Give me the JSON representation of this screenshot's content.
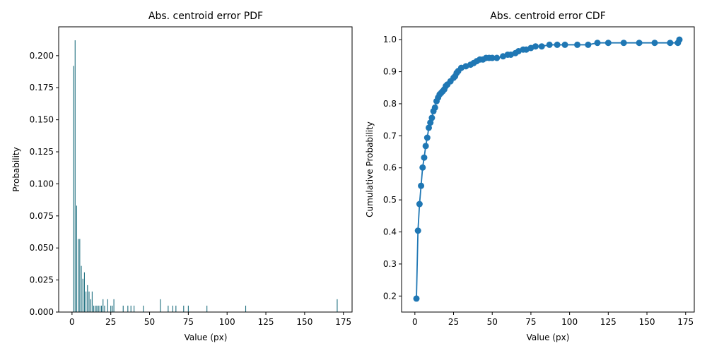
{
  "chart_data": [
    {
      "type": "bar",
      "title": "Abs. centroid error PDF",
      "xlabel": "Value (px)",
      "ylabel": "Probability",
      "xlim": [
        -8.6,
        180.6
      ],
      "ylim": [
        0,
        0.2225
      ],
      "xticks": [
        0,
        25,
        50,
        75,
        100,
        125,
        150,
        175
      ],
      "xtick_labels": [
        "0",
        "25",
        "50",
        "75",
        "100",
        "125",
        "150",
        "175"
      ],
      "yticks": [
        0,
        0.025,
        0.05,
        0.075,
        0.1,
        0.125,
        0.15,
        0.175,
        0.2
      ],
      "ytick_labels": [
        "0.000",
        "0.025",
        "0.050",
        "0.075",
        "0.100",
        "0.125",
        "0.150",
        "0.175",
        "0.200"
      ],
      "grid": false,
      "color": "#1f6f7f",
      "x": [
        1,
        2,
        3,
        4,
        5,
        6,
        7,
        8,
        9,
        10,
        11,
        12,
        13,
        14,
        15,
        16,
        17,
        18,
        19,
        20,
        21,
        23,
        25,
        26,
        27,
        33,
        36,
        38,
        40,
        46,
        57,
        62,
        65,
        67,
        72,
        75,
        87,
        112,
        171
      ],
      "values": [
        0.192,
        0.212,
        0.083,
        0.057,
        0.057,
        0.036,
        0.026,
        0.031,
        0.016,
        0.021,
        0.016,
        0.01,
        0.016,
        0.005,
        0.005,
        0.005,
        0.005,
        0.005,
        0.005,
        0.01,
        0.005,
        0.01,
        0.005,
        0.005,
        0.01,
        0.005,
        0.005,
        0.005,
        0.005,
        0.005,
        0.01,
        0.005,
        0.005,
        0.005,
        0.005,
        0.005,
        0.005,
        0.005,
        0.01
      ]
    },
    {
      "type": "line",
      "title": "Abs. centroid error CDF",
      "xlabel": "Value (px)",
      "ylabel": "Cumulative Probability",
      "xlim": [
        -8.6,
        180.6
      ],
      "ylim": [
        0.15,
        1.04
      ],
      "xticks": [
        0,
        25,
        50,
        75,
        100,
        125,
        150,
        175
      ],
      "xtick_labels": [
        "0",
        "25",
        "50",
        "75",
        "100",
        "125",
        "150",
        "175"
      ],
      "yticks": [
        0.2,
        0.3,
        0.4,
        0.5,
        0.6,
        0.7,
        0.8,
        0.9,
        1.0
      ],
      "ytick_labels": [
        "0.2",
        "0.3",
        "0.4",
        "0.5",
        "0.6",
        "0.7",
        "0.8",
        "0.9",
        "1.0"
      ],
      "grid": false,
      "color": "#1f77b4",
      "marker": "circle",
      "x": [
        1,
        2,
        3,
        4,
        5,
        6,
        7,
        8,
        9,
        10,
        11,
        12,
        13,
        14,
        15,
        16,
        17,
        18,
        19,
        20,
        21,
        23,
        25,
        26,
        27,
        28,
        30,
        33,
        36,
        38,
        40,
        42,
        44,
        46,
        48,
        50,
        53,
        57,
        60,
        62,
        65,
        67,
        70,
        72,
        75,
        78,
        82,
        87,
        92,
        97,
        105,
        112,
        118,
        125,
        135,
        145,
        155,
        165,
        170,
        171
      ],
      "y": [
        0.192,
        0.404,
        0.487,
        0.544,
        0.601,
        0.632,
        0.668,
        0.694,
        0.725,
        0.741,
        0.756,
        0.777,
        0.788,
        0.808,
        0.819,
        0.829,
        0.834,
        0.839,
        0.845,
        0.855,
        0.86,
        0.87,
        0.881,
        0.886,
        0.896,
        0.902,
        0.912,
        0.917,
        0.922,
        0.927,
        0.933,
        0.938,
        0.938,
        0.943,
        0.943,
        0.943,
        0.943,
        0.948,
        0.953,
        0.953,
        0.958,
        0.964,
        0.969,
        0.969,
        0.974,
        0.979,
        0.979,
        0.984,
        0.984,
        0.984,
        0.984,
        0.984,
        0.99,
        0.99,
        0.99,
        0.99,
        0.99,
        0.99,
        0.99,
        1.0
      ]
    }
  ]
}
